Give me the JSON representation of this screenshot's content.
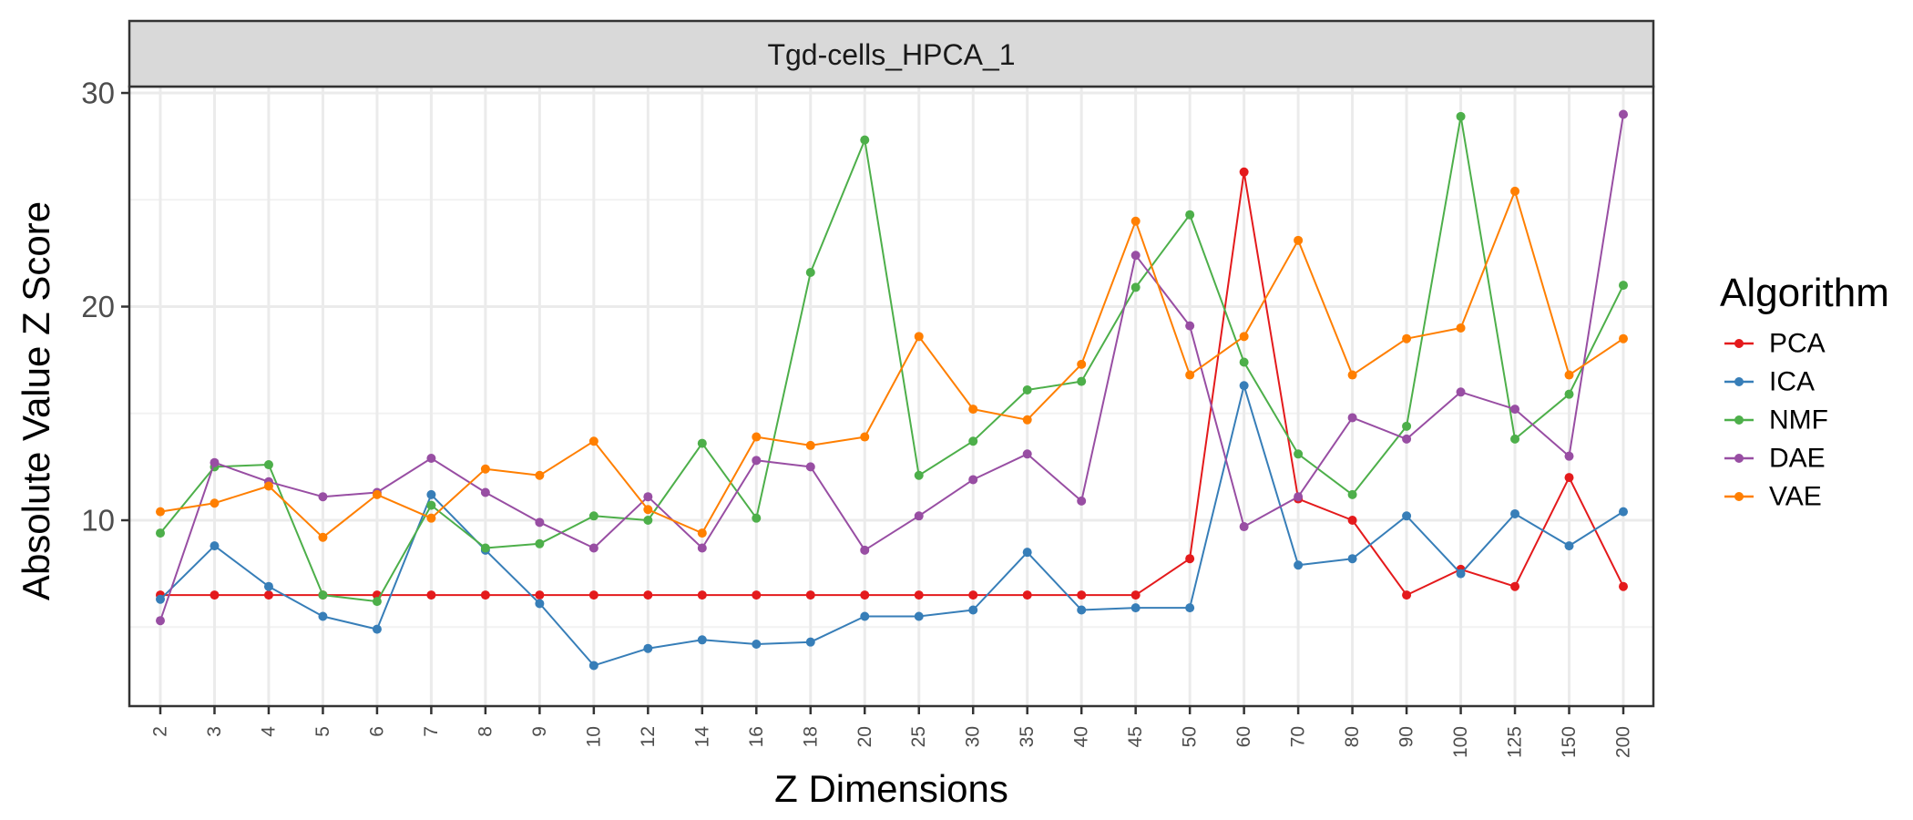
{
  "chart_data": {
    "type": "line",
    "facet_title": "Tgd-cells_HPCA_1",
    "xlabel": "Z Dimensions",
    "ylabel": "Absolute Value Z Score",
    "categories": [
      "2",
      "3",
      "4",
      "5",
      "6",
      "7",
      "8",
      "9",
      "10",
      "12",
      "14",
      "16",
      "18",
      "20",
      "25",
      "30",
      "35",
      "40",
      "45",
      "50",
      "60",
      "70",
      "80",
      "90",
      "100",
      "125",
      "150",
      "200"
    ],
    "ylim": [
      1.3,
      30.3
    ],
    "yticks": [
      10,
      20,
      30
    ],
    "grid": true,
    "legend": {
      "title": "Algorithm",
      "position": "right"
    },
    "series": [
      {
        "name": "PCA",
        "color": "#e41a1c",
        "values": [
          6.5,
          6.5,
          6.5,
          6.5,
          6.5,
          6.5,
          6.5,
          6.5,
          6.5,
          6.5,
          6.5,
          6.5,
          6.5,
          6.5,
          6.5,
          6.5,
          6.5,
          6.5,
          6.5,
          8.2,
          26.3,
          11.0,
          10.0,
          6.5,
          7.7,
          6.9,
          12.0,
          6.9
        ]
      },
      {
        "name": "ICA",
        "color": "#377eb8",
        "values": [
          6.3,
          8.8,
          6.9,
          5.5,
          4.9,
          11.2,
          8.6,
          6.1,
          3.2,
          4.0,
          4.4,
          4.2,
          4.3,
          5.5,
          5.5,
          5.8,
          8.5,
          5.8,
          5.9,
          5.9,
          16.3,
          7.9,
          8.2,
          10.2,
          7.5,
          10.3,
          8.8,
          10.4
        ]
      },
      {
        "name": "NMF",
        "color": "#4daf4a",
        "values": [
          9.4,
          12.5,
          12.6,
          6.5,
          6.2,
          10.7,
          8.7,
          8.9,
          10.2,
          10.0,
          13.6,
          10.1,
          21.6,
          27.8,
          12.1,
          13.7,
          16.1,
          16.5,
          20.9,
          24.3,
          17.4,
          13.1,
          11.2,
          14.4,
          28.9,
          13.8,
          15.9,
          21.0
        ]
      },
      {
        "name": "DAE",
        "color": "#984ea3",
        "values": [
          5.3,
          12.7,
          11.8,
          11.1,
          11.3,
          12.9,
          11.3,
          9.9,
          8.7,
          11.1,
          8.7,
          12.8,
          12.5,
          8.6,
          10.2,
          11.9,
          13.1,
          10.9,
          22.4,
          19.1,
          9.7,
          11.1,
          14.8,
          13.8,
          16.0,
          15.2,
          13.0,
          29.0
        ]
      },
      {
        "name": "VAE",
        "color": "#ff7f00",
        "values": [
          10.4,
          10.8,
          11.6,
          9.2,
          11.2,
          10.1,
          12.4,
          12.1,
          13.7,
          10.5,
          9.4,
          13.9,
          13.5,
          13.9,
          18.6,
          15.2,
          14.7,
          17.3,
          24.0,
          16.8,
          18.6,
          23.1,
          16.8,
          18.5,
          19.0,
          25.4,
          16.8,
          18.5
        ]
      }
    ]
  }
}
